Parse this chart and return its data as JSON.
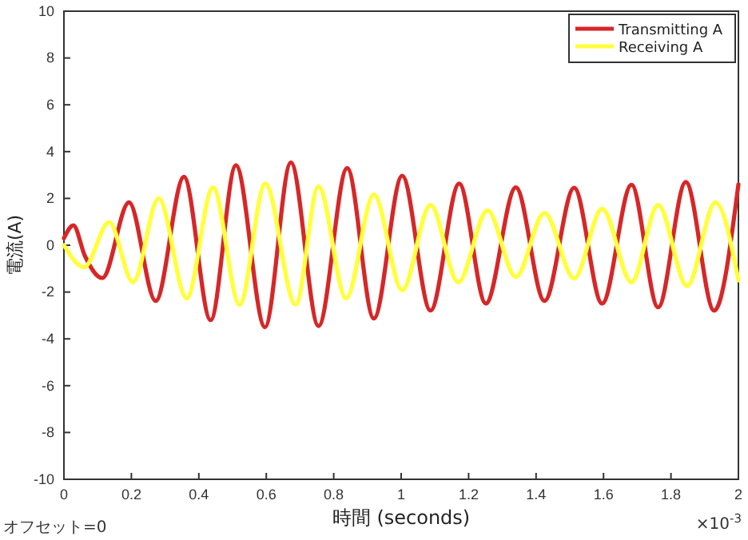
{
  "chart_data": {
    "type": "line",
    "xlabel": "時間 (seconds)",
    "ylabel": "電流(A)",
    "annotations": [
      "オフセット=0",
      "×10$^{-3}$"
    ],
    "xlim": [
      0,
      2
    ],
    "ylim": [
      -10,
      10
    ],
    "xticks": [
      0,
      0.2,
      0.4,
      0.6,
      0.8,
      1,
      1.2,
      1.4,
      1.6,
      1.8,
      2
    ],
    "yticks": [
      -10,
      -8,
      -6,
      -4,
      -2,
      0,
      2,
      4,
      6,
      8,
      10
    ],
    "grid": false,
    "legend": "top right",
    "marker": "none",
    "line_style": "solid",
    "series": [
      {
        "name": "Transmitting A",
        "color": "#d62728",
        "x": [
          0,
          0.028,
          0.062,
          0.114,
          0.193,
          0.272,
          0.356,
          0.435,
          0.51,
          0.596,
          0.673,
          0.755,
          0.84,
          0.919,
          1.003,
          1.087,
          1.172,
          1.251,
          1.34,
          1.425,
          1.513,
          1.596,
          1.683,
          1.762,
          1.844,
          1.928,
          2
        ],
        "values": [
          0.3,
          0.85,
          -0.45,
          -1.4,
          1.83,
          -2.38,
          2.92,
          -3.2,
          3.42,
          -3.5,
          3.54,
          -3.45,
          3.3,
          -3.13,
          2.97,
          -2.79,
          2.63,
          -2.49,
          2.47,
          -2.38,
          2.45,
          -2.49,
          2.58,
          -2.65,
          2.7,
          -2.79,
          2.6
        ]
      },
      {
        "name": "Receiving A",
        "color": "#ffff3a",
        "x": [
          0,
          0.06,
          0.134,
          0.205,
          0.281,
          0.364,
          0.442,
          0.521,
          0.597,
          0.687,
          0.755,
          0.837,
          0.919,
          1.003,
          1.087,
          1.169,
          1.256,
          1.34,
          1.425,
          1.513,
          1.596,
          1.683,
          1.762,
          1.848,
          1.932,
          2
        ],
        "values": [
          0,
          -0.94,
          0.99,
          -1.58,
          2.01,
          -2.27,
          2.47,
          -2.54,
          2.63,
          -2.54,
          2.51,
          -2.27,
          2.17,
          -1.92,
          1.72,
          -1.58,
          1.49,
          -1.35,
          1.38,
          -1.42,
          1.56,
          -1.58,
          1.72,
          -1.74,
          1.83,
          -1.5
        ]
      }
    ]
  }
}
